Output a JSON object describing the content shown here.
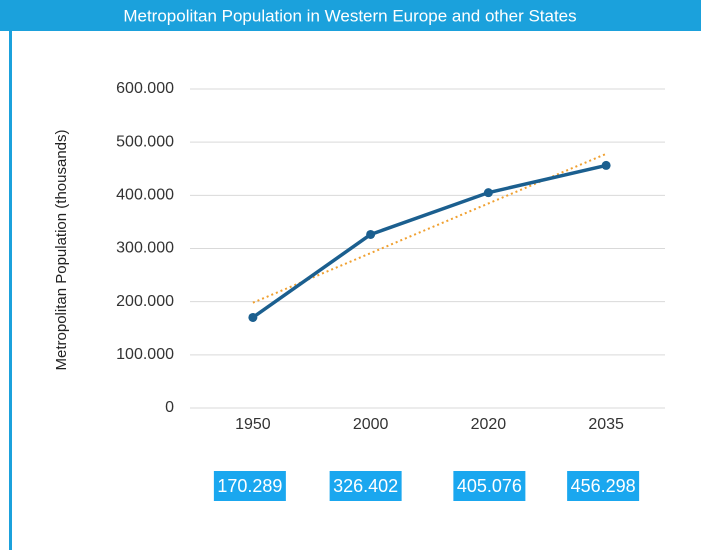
{
  "chart_data": {
    "type": "line",
    "title": "Metropolitan Population in Western Europe and other States",
    "y_label": "Metropolitan Population (thousands)",
    "categories": [
      "1950",
      "2000",
      "2020",
      "2035"
    ],
    "series": [
      {
        "color": "#1b5f8f",
        "values": [
          170289,
          326402,
          405076,
          456298
        ],
        "value_labels": [
          "170.289",
          "326.402",
          "405.076",
          "456.298"
        ]
      }
    ],
    "trendline": {
      "color": "#f0a030",
      "values": [
        198000,
        478000
      ]
    },
    "ylim": [
      0,
      600000
    ],
    "yticks": [
      0,
      {
        "value": 100000,
        "label": "100.000"
      },
      {
        "value": 200000,
        "label": "200.000"
      },
      {
        "value": 300000,
        "label": "300.000"
      },
      {
        "value": 400000,
        "label": "400.000"
      },
      {
        "value": 500000,
        "label": "500.000"
      },
      {
        "value": 600000,
        "label": "600.000"
      }
    ],
    "grid": true
  }
}
